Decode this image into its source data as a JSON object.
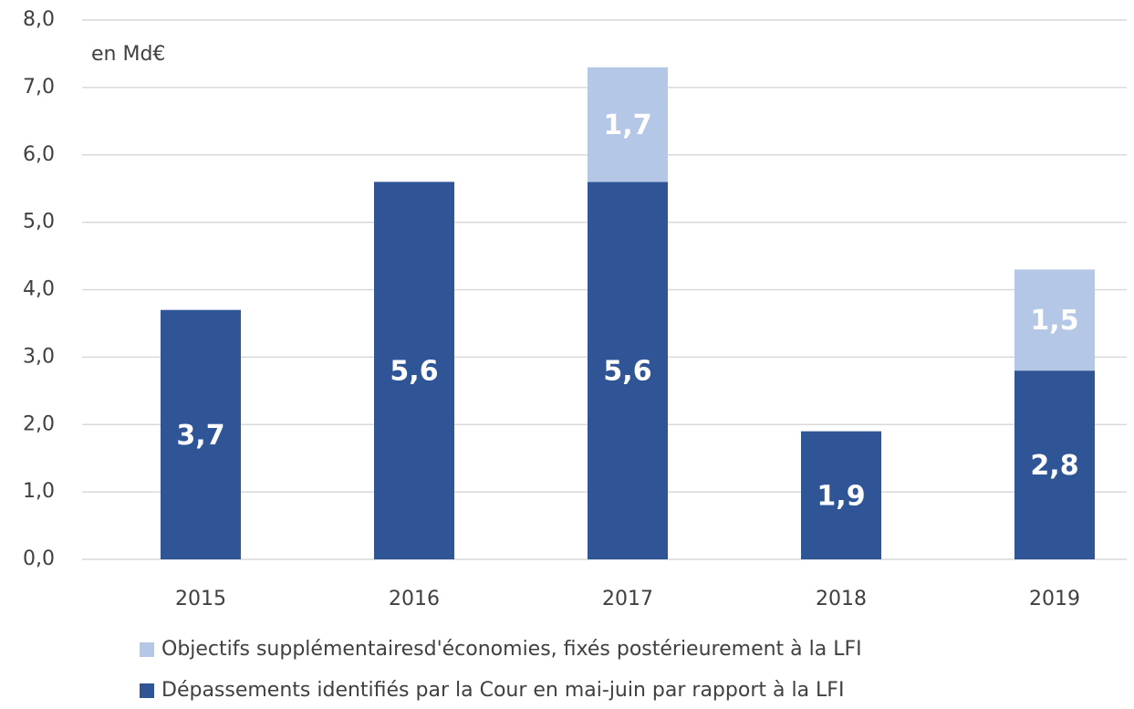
{
  "chart_data": {
    "type": "stacked-bar",
    "annotation": "en Md€",
    "categories": [
      "2015",
      "2016",
      "2017",
      "2018",
      "2019"
    ],
    "series": [
      {
        "name": "Dépassements identifiés par la Cour en mai-juin par rapport à la LFI",
        "color": "#2f5597",
        "values": [
          3.7,
          5.6,
          5.6,
          1.9,
          2.8
        ],
        "value_labels": [
          "3,7",
          "5,6",
          "5,6",
          "1,9",
          "2,8"
        ]
      },
      {
        "name": "Objectifs supplémentairesd'économies, fixés postérieurement à la LFI",
        "color": "#b4c7e7",
        "values": [
          null,
          null,
          1.7,
          null,
          1.5
        ],
        "value_labels": [
          null,
          null,
          "1,7",
          null,
          "1,5"
        ]
      }
    ],
    "legend_order": [
      1,
      0
    ],
    "ylim": [
      0,
      8
    ],
    "yticks": [
      {
        "value": 0,
        "label": "0,0"
      },
      {
        "value": 1,
        "label": "1,0"
      },
      {
        "value": 2,
        "label": "2,0"
      },
      {
        "value": 3,
        "label": "3,0"
      },
      {
        "value": 4,
        "label": "4,0"
      },
      {
        "value": 5,
        "label": "5,0"
      },
      {
        "value": 6,
        "label": "6,0"
      },
      {
        "value": 7,
        "label": "7,0"
      },
      {
        "value": 8,
        "label": "8,0"
      }
    ],
    "grid": true
  }
}
